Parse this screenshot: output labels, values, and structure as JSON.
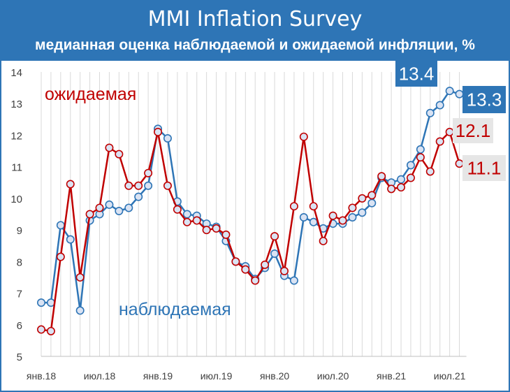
{
  "colors": {
    "header": "#2e75b6",
    "observed": "#2e75b6",
    "expected": "#c00000",
    "marker_fill": "#dae3f3",
    "value_box": "#e6e6e6"
  },
  "chart_data": {
    "type": "line",
    "title": "MMI Inflation Survey",
    "subtitle": "медианная оценка наблюдаемой и ожидаемой инфляции, %",
    "ylim": [
      5,
      14
    ],
    "yticks": [
      "5",
      "6",
      "7",
      "8",
      "9",
      "10",
      "11",
      "12",
      "13",
      "14"
    ],
    "grid": "vertical",
    "x": [
      "2018-01",
      "2018-02",
      "2018-03",
      "2018-04",
      "2018-05",
      "2018-06",
      "2018-07",
      "2018-08",
      "2018-09",
      "2018-10",
      "2018-11",
      "2018-12",
      "2019-01",
      "2019-02",
      "2019-03",
      "2019-04",
      "2019-05",
      "2019-06",
      "2019-07",
      "2019-08",
      "2019-09",
      "2019-10",
      "2019-11",
      "2019-12",
      "2020-01",
      "2020-02",
      "2020-03",
      "2020-04",
      "2020-05",
      "2020-06",
      "2020-07",
      "2020-08",
      "2020-09",
      "2020-10",
      "2020-11",
      "2020-12",
      "2021-01",
      "2021-02",
      "2021-03",
      "2021-04",
      "2021-05",
      "2021-06",
      "2021-07",
      "2021-08"
    ],
    "xtick_labels": [
      "янв.18",
      "июл.18",
      "янв.19",
      "июл.19",
      "янв.20",
      "июл.20",
      "янв.21",
      "июл.21"
    ],
    "series": [
      {
        "name": "наблюдаемая",
        "values": [
          6.7,
          6.7,
          9.15,
          8.7,
          6.45,
          9.3,
          9.5,
          9.8,
          9.6,
          9.7,
          10.05,
          10.4,
          12.2,
          11.9,
          9.9,
          9.5,
          9.45,
          9.2,
          9.1,
          8.65,
          8.0,
          7.85,
          7.45,
          7.8,
          8.25,
          7.55,
          7.4,
          9.4,
          9.25,
          9.05,
          9.2,
          9.2,
          9.4,
          9.55,
          9.85,
          10.65,
          10.5,
          10.6,
          11.05,
          11.55,
          12.7,
          12.95,
          13.4,
          13.3
        ]
      },
      {
        "name": "ожидаемая",
        "values": [
          5.85,
          5.8,
          8.15,
          10.45,
          7.5,
          9.5,
          9.7,
          11.6,
          11.4,
          10.4,
          10.4,
          10.8,
          12.1,
          10.4,
          9.65,
          9.25,
          9.3,
          9.0,
          9.05,
          8.85,
          8.0,
          7.75,
          7.4,
          7.9,
          8.8,
          7.7,
          9.75,
          11.95,
          9.75,
          8.65,
          9.45,
          9.3,
          9.7,
          10.0,
          10.1,
          10.7,
          10.3,
          10.35,
          10.65,
          11.3,
          10.85,
          11.8,
          12.1,
          11.1
        ]
      }
    ],
    "annotations": [
      {
        "text": "13.4",
        "series": "наблюдаемая",
        "style": "boxed"
      },
      {
        "text": "13.3",
        "series": "наблюдаемая",
        "style": "boxed"
      },
      {
        "text": "12.1",
        "series": "ожидаемая",
        "style": "shaded"
      },
      {
        "text": "11.1",
        "series": "ожидаемая",
        "style": "shaded"
      }
    ],
    "legend": "inline labels"
  }
}
